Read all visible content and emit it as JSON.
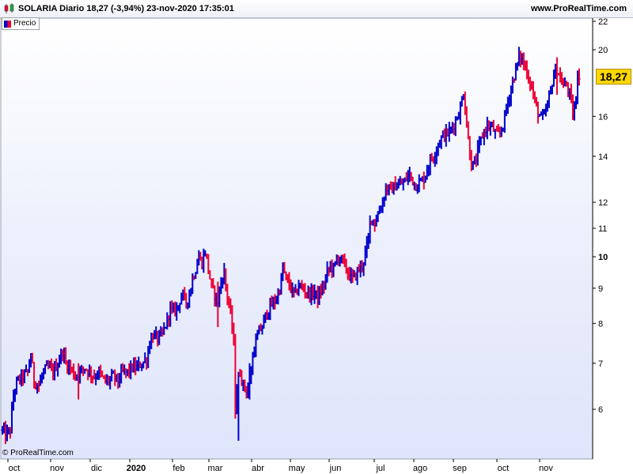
{
  "header": {
    "title": "SOLARIA Diario 18,27 (-3,94%) 23-nov-2020 17:35:01",
    "site": "www.ProRealTime.com"
  },
  "legend": {
    "label": "Precio"
  },
  "footer": {
    "copyright": "© ProRealTime.com"
  },
  "price_badge": "18,27",
  "colors": {
    "up": "#0000cc",
    "down": "#ee0033",
    "badge": "#ffd700"
  },
  "icons": [
    "candlestick-icon",
    "legend-swatch-icon"
  ],
  "chart_data": {
    "type": "bar",
    "style": "ohlc",
    "y_scale": "log",
    "ylim": [
      5.0,
      22.6
    ],
    "y_ticks": [
      {
        "value": 6,
        "label": "6",
        "bold": false
      },
      {
        "value": 7,
        "label": "7",
        "bold": false
      },
      {
        "value": 8,
        "label": "8",
        "bold": false
      },
      {
        "value": 9,
        "label": "9",
        "bold": false
      },
      {
        "value": 10,
        "label": "10",
        "bold": true
      },
      {
        "value": 11,
        "label": "11",
        "bold": false
      },
      {
        "value": 12,
        "label": "12",
        "bold": false
      },
      {
        "value": 14,
        "label": "14",
        "bold": false
      },
      {
        "value": 16,
        "label": "16",
        "bold": false
      },
      {
        "value": 20,
        "label": "20",
        "bold": false
      },
      {
        "value": 22,
        "label": "22",
        "bold": false
      }
    ],
    "x_ticks": [
      {
        "label": "oct",
        "bold": false
      },
      {
        "label": "nov",
        "bold": false
      },
      {
        "label": "dic",
        "bold": false
      },
      {
        "label": "2020",
        "bold": true
      },
      {
        "label": "feb",
        "bold": false
      },
      {
        "label": "mar",
        "bold": false
      },
      {
        "label": "abr",
        "bold": false
      },
      {
        "label": "may",
        "bold": false
      },
      {
        "label": "jun",
        "bold": false
      },
      {
        "label": "jul",
        "bold": false
      },
      {
        "label": "ago",
        "bold": false
      },
      {
        "label": "sep",
        "bold": false
      },
      {
        "label": "oct",
        "bold": false
      },
      {
        "label": "nov",
        "bold": false
      }
    ],
    "series": [
      {
        "name": "Precio",
        "close_path": [
          [
            0,
            5.6
          ],
          [
            4,
            5.5
          ],
          [
            10,
            5.6
          ],
          [
            14,
            6.3
          ],
          [
            19,
            6.6
          ],
          [
            26,
            6.7
          ],
          [
            32,
            6.8
          ],
          [
            36,
            7.2
          ],
          [
            40,
            6.6
          ],
          [
            46,
            6.5
          ],
          [
            52,
            6.8
          ],
          [
            58,
            6.9
          ],
          [
            64,
            6.8
          ],
          [
            70,
            7.0
          ],
          [
            76,
            7.3
          ],
          [
            80,
            7.0
          ],
          [
            86,
            6.9
          ],
          [
            92,
            6.7
          ],
          [
            98,
            6.8
          ],
          [
            104,
            6.9
          ],
          [
            110,
            6.8
          ],
          [
            116,
            6.7
          ],
          [
            122,
            6.8
          ],
          [
            128,
            6.6
          ],
          [
            134,
            6.6
          ],
          [
            140,
            6.7
          ],
          [
            146,
            6.6
          ],
          [
            152,
            6.8
          ],
          [
            158,
            6.8
          ],
          [
            164,
            6.9
          ],
          [
            170,
            6.9
          ],
          [
            176,
            7.0
          ],
          [
            182,
            7.1
          ],
          [
            186,
            7.5
          ],
          [
            190,
            7.7
          ],
          [
            196,
            7.6
          ],
          [
            202,
            7.7
          ],
          [
            208,
            8.1
          ],
          [
            212,
            8.4
          ],
          [
            216,
            8.3
          ],
          [
            222,
            8.5
          ],
          [
            226,
            8.8
          ],
          [
            232,
            8.6
          ],
          [
            236,
            8.8
          ],
          [
            240,
            9.3
          ],
          [
            244,
            9.6
          ],
          [
            248,
            10.0
          ],
          [
            252,
            9.8
          ],
          [
            256,
            10.2
          ],
          [
            260,
            9.6
          ],
          [
            264,
            9.0
          ],
          [
            268,
            8.8
          ],
          [
            272,
            8.6
          ],
          [
            276,
            9.2
          ],
          [
            280,
            9.5
          ],
          [
            283,
            8.8
          ],
          [
            286,
            8.6
          ],
          [
            288,
            8.2
          ],
          [
            292,
            7.5
          ],
          [
            294,
            6.0
          ],
          [
            296,
            6.5
          ],
          [
            300,
            6.8
          ],
          [
            304,
            6.5
          ],
          [
            308,
            6.4
          ],
          [
            312,
            6.5
          ],
          [
            316,
            7.2
          ],
          [
            320,
            7.5
          ],
          [
            324,
            7.8
          ],
          [
            328,
            7.9
          ],
          [
            332,
            8.2
          ],
          [
            336,
            8.4
          ],
          [
            340,
            8.5
          ],
          [
            346,
            8.7
          ],
          [
            350,
            9.0
          ],
          [
            354,
            9.6
          ],
          [
            358,
            9.3
          ],
          [
            362,
            9.1
          ],
          [
            366,
            8.9
          ],
          [
            370,
            8.8
          ],
          [
            374,
            9.1
          ],
          [
            378,
            9.0
          ],
          [
            384,
            8.9
          ],
          [
            390,
            8.8
          ],
          [
            394,
            8.9
          ],
          [
            398,
            8.7
          ],
          [
            402,
            8.9
          ],
          [
            406,
            9.1
          ],
          [
            410,
            9.5
          ],
          [
            414,
            9.7
          ],
          [
            418,
            9.6
          ],
          [
            422,
            9.9
          ],
          [
            426,
            10.0
          ],
          [
            430,
            9.8
          ],
          [
            434,
            9.6
          ],
          [
            438,
            9.4
          ],
          [
            442,
            9.3
          ],
          [
            446,
            9.4
          ],
          [
            450,
            9.6
          ],
          [
            454,
            9.7
          ],
          [
            458,
            10.1
          ],
          [
            462,
            10.6
          ],
          [
            465,
            11.5
          ],
          [
            470,
            11.2
          ],
          [
            476,
            11.7
          ],
          [
            480,
            12.0
          ],
          [
            484,
            12.6
          ],
          [
            490,
            12.5
          ],
          [
            496,
            12.7
          ],
          [
            500,
            12.7
          ],
          [
            506,
            12.8
          ],
          [
            510,
            13.0
          ],
          [
            514,
            13.2
          ],
          [
            518,
            12.9
          ],
          [
            522,
            12.7
          ],
          [
            526,
            12.8
          ],
          [
            532,
            13.0
          ],
          [
            536,
            13.4
          ],
          [
            540,
            13.8
          ],
          [
            544,
            14.0
          ],
          [
            550,
            14.6
          ],
          [
            556,
            15.0
          ],
          [
            562,
            15.1
          ],
          [
            566,
            15.3
          ],
          [
            570,
            15.6
          ],
          [
            574,
            16.0
          ],
          [
            578,
            16.4
          ],
          [
            582,
            17.4
          ],
          [
            585,
            16.0
          ],
          [
            588,
            14.8
          ],
          [
            592,
            13.6
          ],
          [
            596,
            13.6
          ],
          [
            600,
            14.2
          ],
          [
            604,
            14.8
          ],
          [
            608,
            15.2
          ],
          [
            612,
            15.5
          ],
          [
            618,
            15.4
          ],
          [
            624,
            15.0
          ],
          [
            628,
            15.1
          ],
          [
            632,
            15.6
          ],
          [
            636,
            16.4
          ],
          [
            640,
            17.2
          ],
          [
            644,
            18.0
          ],
          [
            648,
            18.7
          ],
          [
            652,
            19.5
          ],
          [
            656,
            19.4
          ],
          [
            660,
            18.8
          ],
          [
            664,
            18.3
          ],
          [
            668,
            17.6
          ],
          [
            672,
            16.8
          ],
          [
            676,
            16.2
          ],
          [
            680,
            15.9
          ],
          [
            684,
            16.0
          ],
          [
            688,
            16.6
          ],
          [
            692,
            17.5
          ],
          [
            696,
            18.4
          ],
          [
            700,
            18.8
          ],
          [
            704,
            18.2
          ],
          [
            708,
            17.7
          ],
          [
            712,
            17.8
          ],
          [
            716,
            17.2
          ],
          [
            720,
            16.1
          ],
          [
            724,
            16.8
          ],
          [
            726,
            18.7
          ],
          [
            728,
            18.27
          ]
        ],
        "spikes": [
          {
            "x": 96,
            "low": 6.2,
            "high": 7.0
          },
          {
            "x": 272,
            "low": 7.9,
            "high": 9.2
          },
          {
            "x": 289,
            "low": 7.7,
            "high": 9.0
          },
          {
            "x": 293,
            "low": 5.6,
            "high": 7.3
          },
          {
            "x": 298,
            "low": 5.4,
            "high": 6.8
          },
          {
            "x": 312,
            "low": 6.2,
            "high": 7.0
          },
          {
            "x": 397,
            "low": 8.2,
            "high": 9.0
          },
          {
            "x": 593,
            "low": 13.2,
            "high": 14.7
          },
          {
            "x": 653,
            "low": 18.6,
            "high": 19.8
          },
          {
            "x": 700,
            "low": 17.2,
            "high": 19.5
          },
          {
            "x": 721,
            "low": 15.9,
            "high": 16.8
          },
          {
            "x": 727,
            "low": 17.8,
            "high": 19.4
          }
        ]
      }
    ]
  }
}
